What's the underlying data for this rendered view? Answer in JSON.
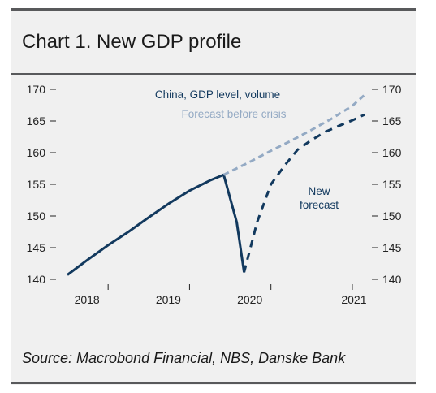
{
  "title": "Chart 1. New GDP profile",
  "source": "Source: Macrobond Financial, NBS, Danske Bank",
  "colors": {
    "actual": "#12395e",
    "forecast_before_crisis": "#94aac4",
    "new_forecast": "#12395e",
    "background": "#f0f0f0",
    "rule": "#58595b"
  },
  "chart_data": {
    "type": "line",
    "title": "Chart 1. New GDP profile",
    "xlabel": "",
    "ylabel": "",
    "x_ticks": [
      "2018",
      "2019",
      "2020",
      "2021"
    ],
    "x_tick_values": [
      2018.0,
      2019.0,
      2020.0,
      2021.0
    ],
    "xlim": [
      2017.42,
      2021.18
    ],
    "ylim": [
      140,
      170
    ],
    "y_ticks": [
      140,
      145,
      150,
      155,
      160,
      165,
      170
    ],
    "y_tick_labels": [
      "140",
      "145",
      "150",
      "155",
      "160",
      "165",
      "170"
    ],
    "grid": false,
    "annotations": [
      {
        "text": "China, GDP level, volume",
        "series": "actual"
      },
      {
        "text": "Forecast before crisis",
        "series": "forecast_before_crisis"
      },
      {
        "text": "New",
        "series": "new_forecast"
      },
      {
        "text": "forecast",
        "series": "new_forecast"
      }
    ],
    "series": [
      {
        "key": "actual",
        "style": "solid",
        "x": [
          2017.5,
          2017.75,
          2018.0,
          2018.25,
          2018.5,
          2018.75,
          2019.0,
          2019.25,
          2019.42,
          2019.58,
          2019.67
        ],
        "y": [
          140.7,
          143.1,
          145.4,
          147.5,
          149.8,
          152.0,
          154.0,
          155.6,
          156.5,
          149.0,
          141.1
        ]
      },
      {
        "key": "forecast_before_crisis",
        "style": "dashed",
        "x": [
          2019.42,
          2019.75,
          2020.0,
          2020.25,
          2020.5,
          2020.75,
          2021.0,
          2021.15
        ],
        "y": [
          156.5,
          158.6,
          160.3,
          161.9,
          163.6,
          165.4,
          167.4,
          169.1
        ]
      },
      {
        "key": "new_forecast",
        "style": "dashed",
        "x": [
          2019.67,
          2019.83,
          2020.0,
          2020.17,
          2020.33,
          2020.5,
          2020.67,
          2020.83,
          2021.0,
          2021.15
        ],
        "y": [
          141.1,
          149.0,
          155.0,
          158.0,
          160.5,
          162.0,
          163.3,
          164.2,
          165.1,
          166.0
        ]
      }
    ]
  }
}
